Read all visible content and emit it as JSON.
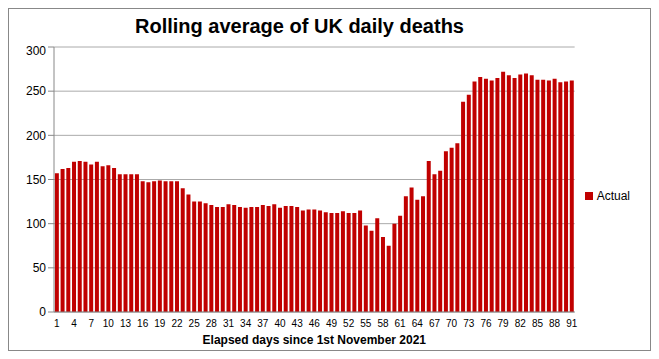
{
  "chart_data": {
    "type": "bar",
    "title": "Rolling average of UK daily deaths",
    "x_label": "Elapsed days since 1st November 2021",
    "categories": [
      "1",
      null,
      null,
      "4",
      null,
      null,
      "7",
      null,
      null,
      "10",
      null,
      null,
      "13",
      null,
      null,
      "16",
      null,
      null,
      "19",
      null,
      null,
      "22",
      null,
      null,
      "25",
      null,
      null,
      "28",
      null,
      null,
      "31",
      null,
      null,
      "34",
      null,
      null,
      "37",
      null,
      null,
      "40",
      null,
      null,
      "43",
      null,
      null,
      "46",
      null,
      null,
      "49",
      null,
      null,
      "52",
      null,
      null,
      "55",
      null,
      null,
      "58",
      null,
      null,
      "61",
      null,
      null,
      "64",
      null,
      null,
      "67",
      null,
      null,
      "70",
      null,
      null,
      "73",
      null,
      null,
      "76",
      null,
      null,
      "79",
      null,
      null,
      "82",
      null,
      null,
      "85",
      null,
      null,
      "88",
      null,
      null,
      "91"
    ],
    "series": [
      {
        "name": "Actual",
        "color": "#c00000",
        "values": [
          157,
          162,
          163,
          170,
          171,
          170,
          167,
          170,
          165,
          166,
          163,
          156,
          156,
          156,
          156,
          148,
          147,
          148,
          149,
          148,
          148,
          148,
          140,
          133,
          125,
          125,
          123,
          121,
          119,
          119,
          122,
          121,
          119,
          118,
          119,
          119,
          121,
          120,
          122,
          118,
          120,
          120,
          119,
          115,
          116,
          116,
          115,
          113,
          112,
          112,
          114,
          112,
          112,
          115,
          98,
          92,
          106,
          85,
          75,
          100,
          109,
          131,
          141,
          127,
          131,
          171,
          156,
          160,
          182,
          186,
          191,
          238,
          246,
          261,
          266,
          264,
          262,
          265,
          272,
          268,
          265,
          269,
          270,
          268,
          263,
          263,
          262,
          264,
          260,
          261,
          262
        ]
      }
    ],
    "ylim": [
      0,
      300
    ],
    "yticks": [
      0,
      50,
      100,
      150,
      200,
      250,
      300
    ],
    "grid": true,
    "legend": "right"
  }
}
